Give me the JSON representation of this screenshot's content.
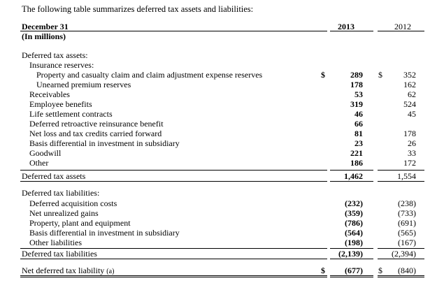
{
  "intro": "The following table summarizes deferred tax assets and liabilities:",
  "header": {
    "col_label_1": "December 31",
    "col_label_2": "(In millions)",
    "year_current": "2013",
    "year_prior": "2012"
  },
  "currency_symbol": "$",
  "assets": {
    "section_title": "Deferred tax assets:",
    "subsection_title": "Insurance reserves:",
    "rows": [
      {
        "label": "Property and casualty claim and claim adjustment expense reserves",
        "v2013": "289",
        "v2012": "352"
      },
      {
        "label": "Unearned premium reserves",
        "v2013": "178",
        "v2012": "162"
      },
      {
        "label": "Receivables",
        "v2013": "53",
        "v2012": "62"
      },
      {
        "label": "Employee benefits",
        "v2013": "319",
        "v2012": "524"
      },
      {
        "label": "Life settlement contracts",
        "v2013": "46",
        "v2012": "45"
      },
      {
        "label": "Deferred retroactive reinsurance benefit",
        "v2013": "66",
        "v2012": ""
      },
      {
        "label": "Net loss and tax credits carried forward",
        "v2013": "81",
        "v2012": "178"
      },
      {
        "label": "Basis differential in investment in subsidiary",
        "v2013": "23",
        "v2012": "26"
      },
      {
        "label": "Goodwill",
        "v2013": "221",
        "v2012": "33"
      },
      {
        "label": "Other",
        "v2013": "186",
        "v2012": "172"
      }
    ],
    "total": {
      "label": "Deferred tax assets",
      "v2013": "1,462",
      "v2012": "1,554"
    }
  },
  "liabilities": {
    "section_title": "Deferred tax liabilities:",
    "rows": [
      {
        "label": "Deferred acquisition costs",
        "v2013": "(232)",
        "v2012": "(238)"
      },
      {
        "label": "Net unrealized gains",
        "v2013": "(359)",
        "v2012": "(733)"
      },
      {
        "label": "Property, plant and equipment",
        "v2013": "(786)",
        "v2012": "(691)"
      },
      {
        "label": "Basis differential in investment in subsidiary",
        "v2013": "(564)",
        "v2012": "(565)"
      },
      {
        "label": "Other liabilities",
        "v2013": "(198)",
        "v2012": "(167)"
      }
    ],
    "total": {
      "label": "Deferred tax liabilities",
      "v2013": "(2,139)",
      "v2012": "(2,394)"
    }
  },
  "net": {
    "label": "Net deferred tax liability",
    "note": "(a)",
    "v2013": "(677)",
    "v2012": "(840)"
  }
}
